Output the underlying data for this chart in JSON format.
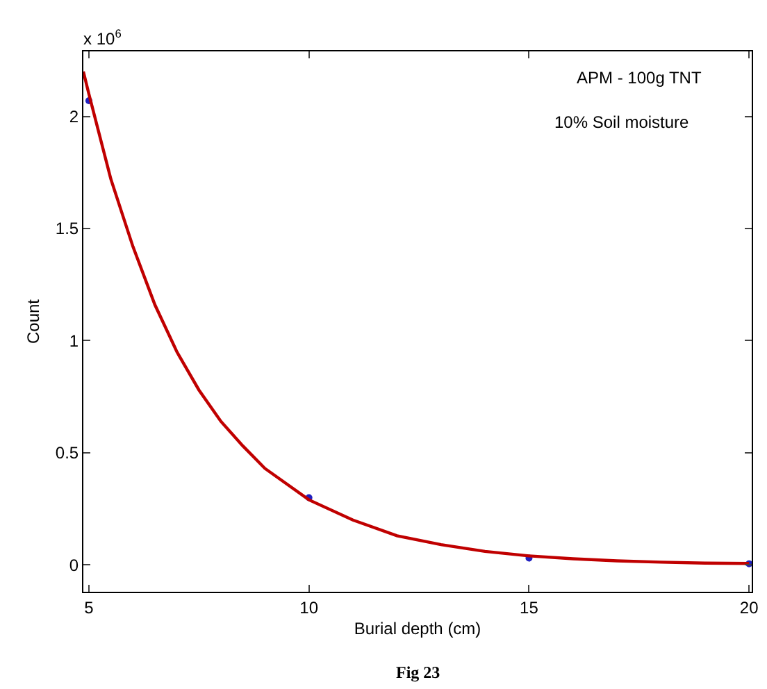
{
  "chart_data": {
    "type": "scatter",
    "xlabel": "Burial depth (cm)",
    "ylabel": "Count",
    "annotations": [
      "x 10$^{6}$",
      "APM - 100g TNT",
      "10% Soil moisture",
      "Fig 23"
    ],
    "series": [
      {
        "color": "#2020c0",
        "marker": "circle",
        "x": [
          5,
          10,
          15,
          20
        ],
        "values": [
          2.07,
          0.3,
          0.03,
          0.005
        ]
      },
      {
        "type": "line",
        "color": "#c00000",
        "marker": "none",
        "line_style": "solid",
        "x": [
          4.875,
          5,
          5.5,
          6,
          6.5,
          7,
          7.5,
          8,
          8.5,
          9,
          9.5,
          10,
          11,
          12,
          13,
          14,
          15,
          16,
          17,
          18,
          19,
          20
        ],
        "values": [
          2.2,
          2.1,
          1.72,
          1.42,
          1.16,
          0.95,
          0.78,
          0.64,
          0.53,
          0.43,
          0.36,
          0.29,
          0.2,
          0.13,
          0.09,
          0.06,
          0.04,
          0.027,
          0.018,
          0.012,
          0.008,
          0.006
        ]
      }
    ],
    "xlim": [
      4.875,
      20.06
    ],
    "ylim": [
      -0.12,
      2.29
    ],
    "xticks": [
      5,
      10,
      15,
      20
    ],
    "yticks": [
      0,
      0.5,
      1,
      1.5,
      2
    ]
  }
}
